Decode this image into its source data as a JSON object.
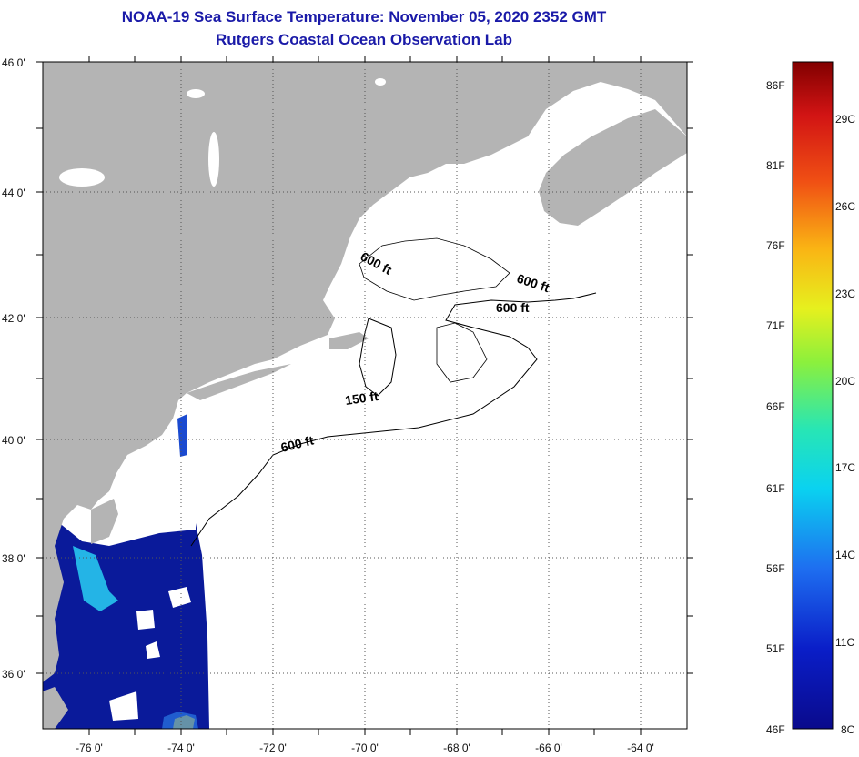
{
  "title": "NOAA-19 Sea Surface Temperature:  November 05, 2020 2352 GMT",
  "subtitle": "Rutgers Coastal Ocean Observation Lab",
  "lat_labels": [
    "46 0'",
    "44 0'",
    "42 0'",
    "40 0'",
    "38 0'",
    "36 0'"
  ],
  "lon_labels": [
    "-76 0'",
    "-74 0'",
    "-72 0'",
    "-70 0'",
    "-68 0'",
    "-66 0'",
    "-64 0'"
  ],
  "contours": {
    "c600_a": "600 ft",
    "c600_b": "600 ft",
    "c600_c": "600 ft",
    "c150": "150 ft",
    "c600_d": "600 ft"
  },
  "colorbar": {
    "f_labels": [
      "86F",
      "81F",
      "76F",
      "71F",
      "66F",
      "61F",
      "56F",
      "51F",
      "46F"
    ],
    "c_labels": [
      "29C",
      "26C",
      "23C",
      "20C",
      "17C",
      "14C",
      "11C",
      "8C"
    ]
  },
  "colors": {
    "land": "#b4b4b4",
    "ocean_cloud": "#ffffff",
    "sst_cold": "#0a1a9a",
    "title": "#1a1aa8"
  }
}
